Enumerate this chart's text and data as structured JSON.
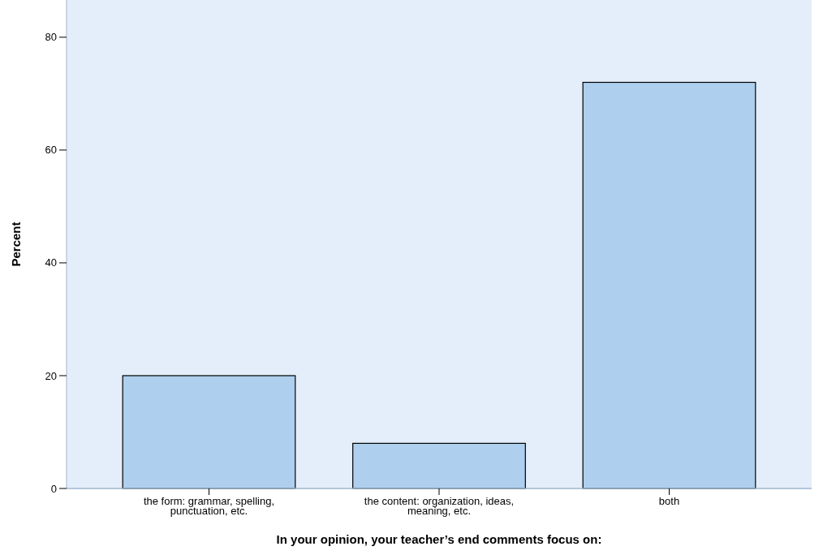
{
  "chart_data": {
    "type": "bar",
    "xlabel": "In your opinion, your teacher’s end comments focus on:",
    "ylabel": "Percent",
    "categories": [
      "the form: grammar, spelling, punctuation, etc.",
      "the content: organization, ideas, meaning, etc.",
      "both"
    ],
    "values": [
      20,
      8,
      72
    ],
    "color": "#aecfee",
    "ylim": [
      0,
      86.6
    ],
    "yticks": [
      0,
      20,
      40,
      60,
      80
    ],
    "grid": false
  }
}
